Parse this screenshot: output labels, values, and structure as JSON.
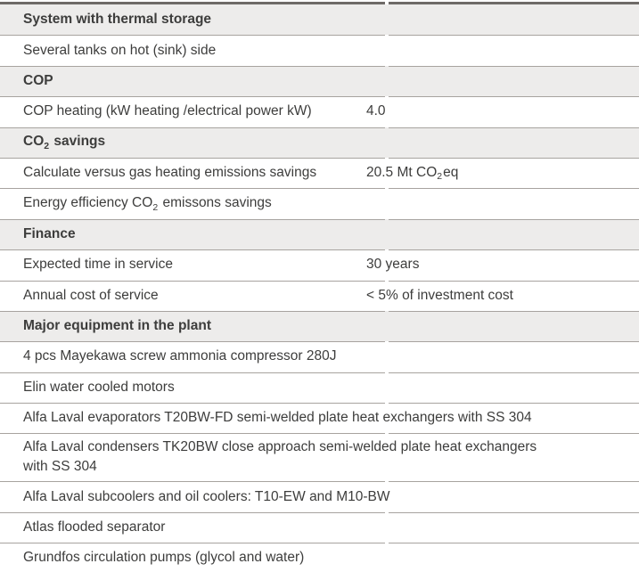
{
  "colors": {
    "header_bg": "#edeceb",
    "line": "#a7a39f",
    "line_dark": "#6e6a67",
    "text": "#3d3d3c"
  },
  "table": {
    "rows": [
      {
        "type": "section-header",
        "label": "System with thermal storage"
      },
      {
        "type": "item",
        "label": "Several tanks on hot (sink) side"
      },
      {
        "type": "section-header",
        "label": "COP"
      },
      {
        "type": "item",
        "label": "COP heating (kW heating /electrical power kW)",
        "value": "4.0"
      },
      {
        "type": "section-header",
        "label_pre": "CO",
        "label_sub": "2",
        "label_post": " savings"
      },
      {
        "type": "item",
        "label": "Calculate versus gas heating emissions savings",
        "value_pre": "20.5 Mt CO",
        "value_sub": "2",
        "value_post": "eq"
      },
      {
        "type": "item",
        "label_pre": "Energy efficiency CO",
        "label_sub": "2",
        "label_post": " emissons savings"
      },
      {
        "type": "section-header",
        "label": "Finance"
      },
      {
        "type": "item",
        "label": "Expected time in service",
        "value": "30 years"
      },
      {
        "type": "item",
        "label": "Annual cost of service",
        "value": "< 5% of investment cost"
      },
      {
        "type": "section-header",
        "label": "Major equipment in the plant"
      },
      {
        "type": "item",
        "label": "4 pcs Mayekawa screw ammonia compressor 280J"
      },
      {
        "type": "item",
        "label": "Elin water cooled motors"
      },
      {
        "type": "item",
        "label": "Alfa Laval evaporators T20BW-FD semi-welded plate heat exchangers with SS 304"
      },
      {
        "type": "item",
        "label_line1": "Alfa Laval condensers TK20BW close approach semi-welded plate heat exchangers",
        "label_line2": "with SS 304"
      },
      {
        "type": "item",
        "label": "Alfa Laval subcoolers and oil coolers: T10-EW and M10-BW"
      },
      {
        "type": "item",
        "label": "Atlas flooded separator"
      },
      {
        "type": "item",
        "label": "Grundfos circulation pumps (glycol and water)"
      }
    ]
  }
}
